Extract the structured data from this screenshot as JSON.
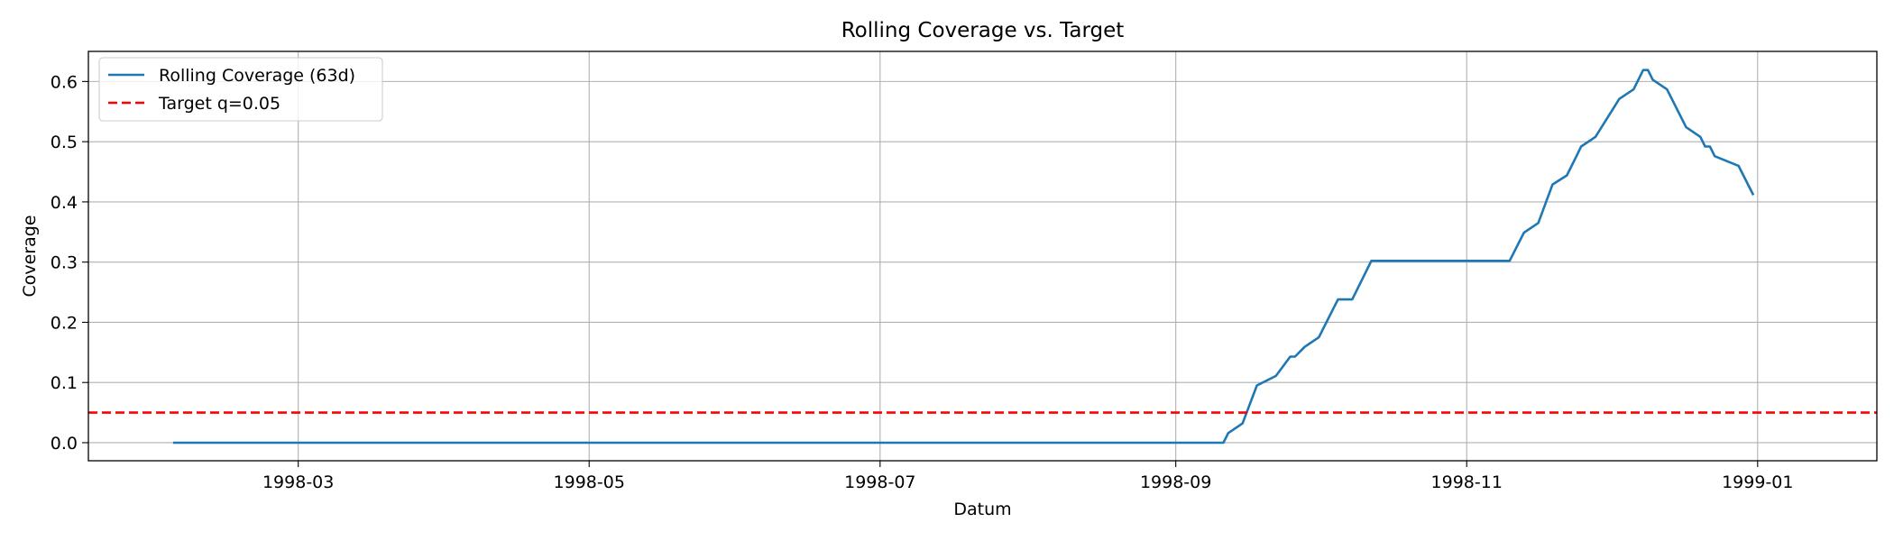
{
  "chart_data": {
    "type": "line",
    "title": "Rolling Coverage vs. Target",
    "xlabel": "Datum",
    "ylabel": "Coverage",
    "grid": true,
    "legend_position": "top-left",
    "x_range": [
      "1998-01-16",
      "1999-01-26"
    ],
    "ylim": [
      -0.03,
      0.65
    ],
    "x_ticks": [
      "1998-03-01",
      "1998-05-01",
      "1998-07-01",
      "1998-09-01",
      "1998-11-01",
      "1999-01-01"
    ],
    "x_tick_labels": [
      "1998-03",
      "1998-05",
      "1998-07",
      "1998-09",
      "1998-11",
      "1999-01"
    ],
    "y_ticks": [
      0.0,
      0.1,
      0.2,
      0.3,
      0.4,
      0.5,
      0.6
    ],
    "y_tick_labels": [
      "0.0",
      "0.1",
      "0.2",
      "0.3",
      "0.4",
      "0.5",
      "0.6"
    ],
    "series": [
      {
        "name": "Rolling Coverage (63d)",
        "color": "#1f77b4",
        "style": "solid",
        "x": [
          "1998-02-03",
          "1998-09-11",
          "1998-09-12",
          "1998-09-15",
          "1998-09-18",
          "1998-09-22",
          "1998-09-25",
          "1998-09-26",
          "1998-09-28",
          "1998-10-01",
          "1998-10-05",
          "1998-10-06",
          "1998-10-08",
          "1998-10-12",
          "1998-10-20",
          "1998-11-10",
          "1998-11-13",
          "1998-11-16",
          "1998-11-19",
          "1998-11-22",
          "1998-11-24",
          "1998-11-25",
          "1998-11-28",
          "1998-12-03",
          "1998-12-06",
          "1998-12-08",
          "1998-12-09",
          "1998-12-10",
          "1998-12-13",
          "1998-12-17",
          "1998-12-20",
          "1998-12-21",
          "1998-12-22",
          "1998-12-23",
          "1998-12-28",
          "1998-12-31"
        ],
        "y": [
          0.0,
          0.0,
          0.016,
          0.032,
          0.095,
          0.111,
          0.143,
          0.143,
          0.159,
          0.175,
          0.238,
          0.238,
          0.238,
          0.302,
          0.302,
          0.302,
          0.349,
          0.365,
          0.429,
          0.444,
          0.476,
          0.492,
          0.508,
          0.571,
          0.587,
          0.619,
          0.619,
          0.603,
          0.587,
          0.524,
          0.508,
          0.492,
          0.492,
          0.476,
          0.46,
          0.413
        ]
      },
      {
        "name": "Target q=0.05",
        "color": "#ff0000",
        "style": "dashed",
        "y_constant": 0.05
      }
    ]
  }
}
